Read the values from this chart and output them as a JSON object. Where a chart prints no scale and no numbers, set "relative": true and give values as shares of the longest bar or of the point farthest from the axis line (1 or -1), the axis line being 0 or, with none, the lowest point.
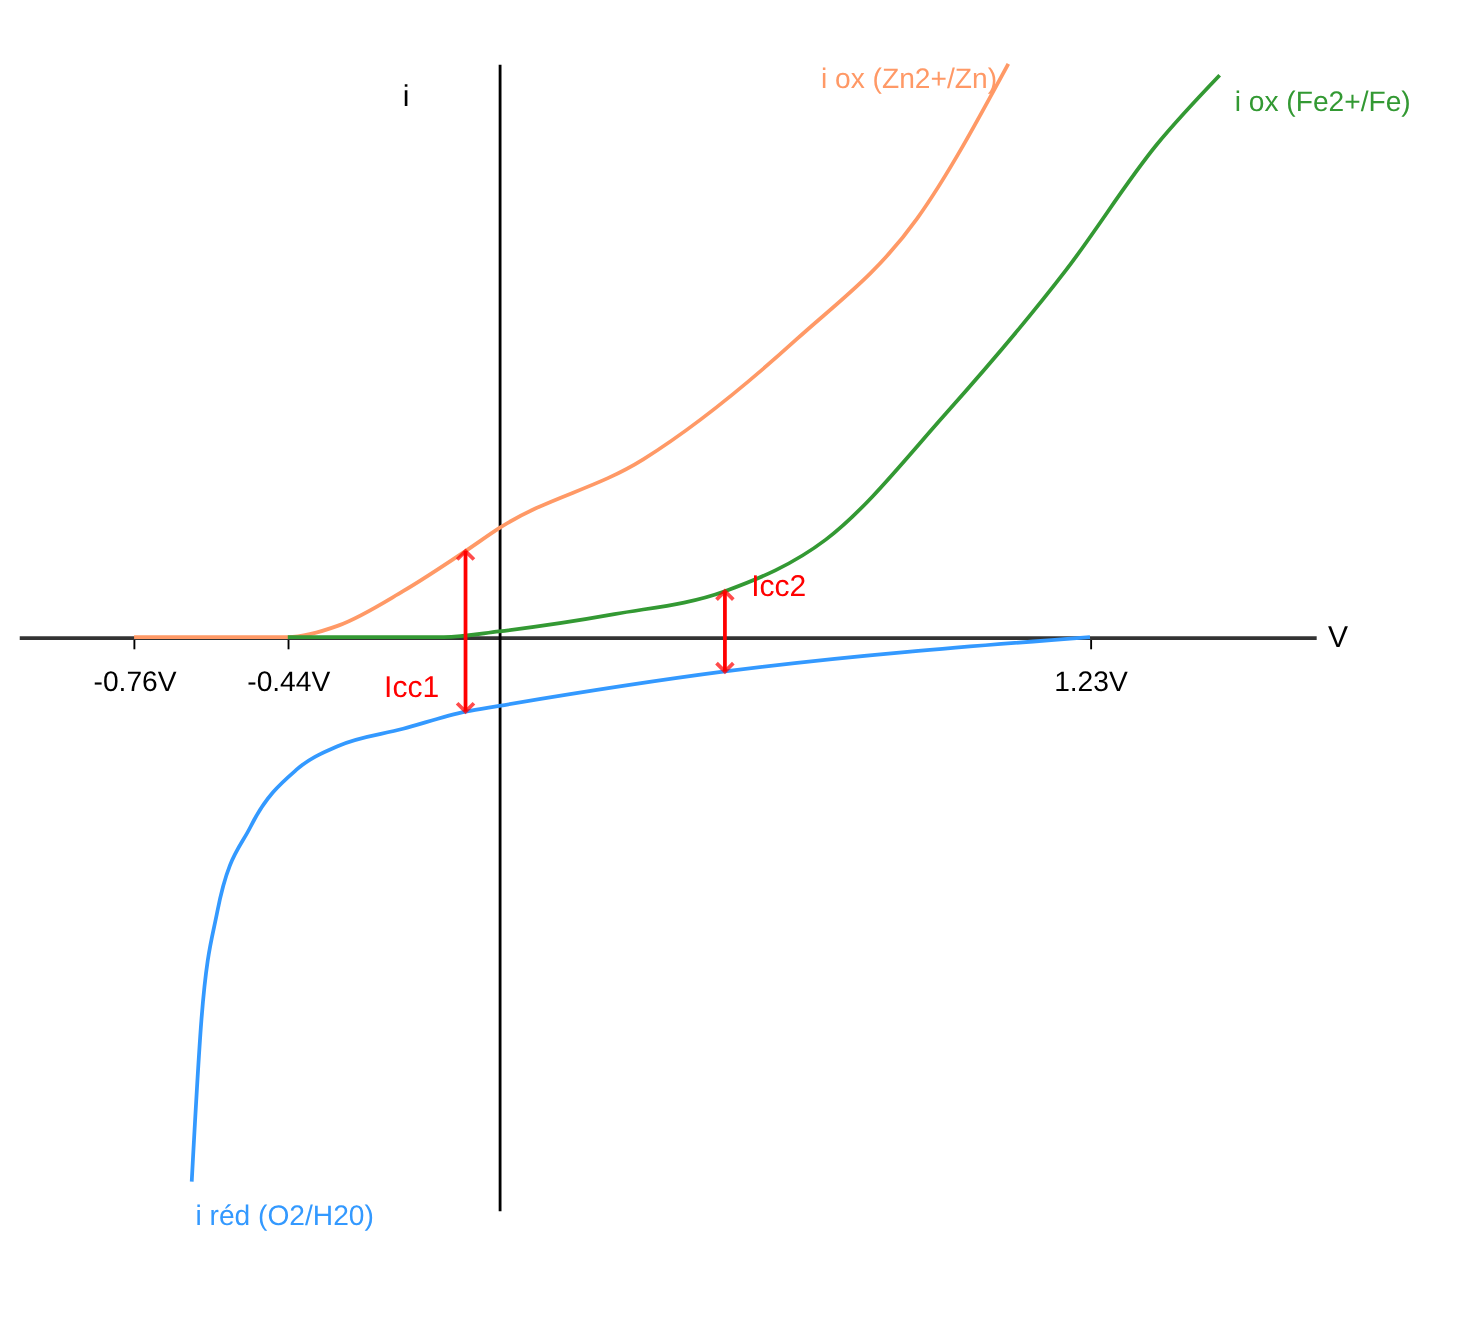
{
  "chart_data": {
    "type": "line",
    "relative": true,
    "xlabel": "V",
    "ylabel": "i",
    "xlim": [
      -1.0,
      1.7
    ],
    "xticks": [
      {
        "value": -0.76,
        "label": "-0.76V"
      },
      {
        "value": -0.44,
        "label": "-0.44V"
      },
      {
        "value": 1.23,
        "label": "1.23V"
      }
    ],
    "grid": false,
    "legend": false,
    "series": [
      {
        "name": "i ox (Zn2+/Zn)",
        "color": "#ff9966",
        "x": [
          -0.76,
          -0.44,
          -0.335,
          -0.2,
          -0.07,
          0,
          0.3,
          0.62,
          0.87,
          1.06
        ],
        "values": [
          0,
          0,
          0.02,
          0.08,
          0.15,
          0.19,
          0.31,
          0.52,
          0.73,
          1
        ]
      },
      {
        "name": "i ox (Fe2+/Fe)",
        "color": "#339933",
        "x": [
          -0.44,
          -0.115,
          0,
          0.24,
          0.47,
          0.68,
          0.93,
          1.18,
          1.37,
          1.5
        ],
        "values": [
          0,
          0,
          0.01,
          0.04,
          0.08,
          0.17,
          0.39,
          0.64,
          0.86,
          0.98
        ]
      },
      {
        "name": "i réd (O2/H20)",
        "color": "#3399ff",
        "x": [
          -0.64,
          -0.62,
          -0.587,
          -0.517,
          -0.42,
          -0.335,
          -0.2,
          -0.07,
          0,
          0.47,
          1.23
        ],
        "values": [
          -0.95,
          -0.67,
          -0.48,
          -0.33,
          -0.23,
          -0.19,
          -0.16,
          -0.13,
          -0.12,
          -0.06,
          0
        ]
      }
    ],
    "annotations": [
      {
        "text": "Icc1",
        "x": -0.07,
        "y": 0.15
      },
      {
        "text": "Icc2",
        "x": 0.47,
        "y": 0.08
      }
    ]
  }
}
